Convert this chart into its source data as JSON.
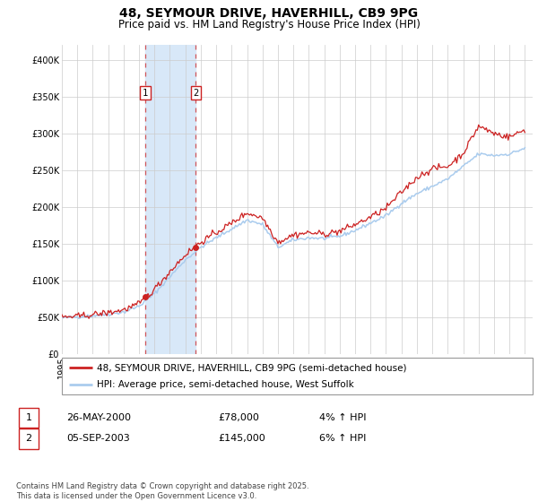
{
  "title": "48, SEYMOUR DRIVE, HAVERHILL, CB9 9PG",
  "subtitle": "Price paid vs. HM Land Registry's House Price Index (HPI)",
  "ylim": [
    0,
    420000
  ],
  "yticks": [
    0,
    50000,
    100000,
    150000,
    200000,
    250000,
    300000,
    350000,
    400000
  ],
  "ytick_labels": [
    "£0",
    "£50K",
    "£100K",
    "£150K",
    "£200K",
    "£250K",
    "£300K",
    "£350K",
    "£400K"
  ],
  "background_color": "#ffffff",
  "plot_bg_color": "#ffffff",
  "grid_color": "#cccccc",
  "hpi_line_color": "#aaccee",
  "price_line_color": "#cc2222",
  "shade_color": "#d8e8f8",
  "transaction1_date": 2000.41,
  "transaction1_price": 78000,
  "transaction2_date": 2003.67,
  "transaction2_price": 145000,
  "legend_line1": "48, SEYMOUR DRIVE, HAVERHILL, CB9 9PG (semi-detached house)",
  "legend_line2": "HPI: Average price, semi-detached house, West Suffolk",
  "table_row1_num": "1",
  "table_row1_date": "26-MAY-2000",
  "table_row1_price": "£78,000",
  "table_row1_hpi": "4% ↑ HPI",
  "table_row2_num": "2",
  "table_row2_date": "05-SEP-2003",
  "table_row2_price": "£145,000",
  "table_row2_hpi": "6% ↑ HPI",
  "footer": "Contains HM Land Registry data © Crown copyright and database right 2025.\nThis data is licensed under the Open Government Licence v3.0.",
  "title_fontsize": 10,
  "subtitle_fontsize": 8.5,
  "tick_fontsize": 7,
  "legend_fontsize": 7.5,
  "table_fontsize": 8,
  "footer_fontsize": 6
}
